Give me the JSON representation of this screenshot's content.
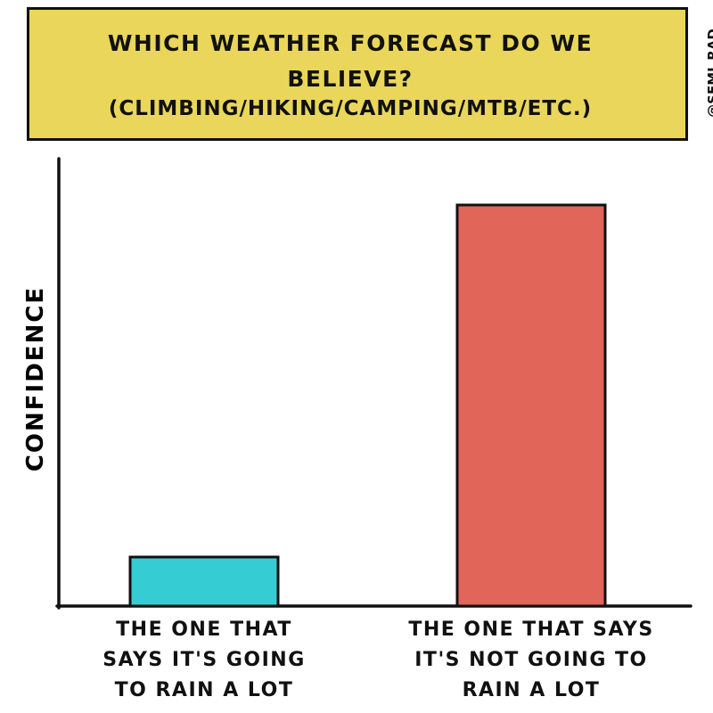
{
  "chart_data": {
    "type": "bar",
    "title": "WHICH WEATHER FORECAST DO WE BELIEVE?",
    "subtitle": "(CLIMBING/HIKING/CAMPING/MTB/ETC.)",
    "credit": "@SEMI_RAD",
    "y_label": "CONFIDENCE",
    "categories": [
      "THE ONE THAT SAYS IT'S GOING TO RAIN A LOT",
      "THE ONE THAT SAYS IT'S NOT GOING TO RAIN A LOT"
    ],
    "values": [
      11,
      90
    ],
    "colors": [
      "#36ccd4",
      "#e2655a"
    ],
    "ylim": [
      0,
      100
    ]
  }
}
